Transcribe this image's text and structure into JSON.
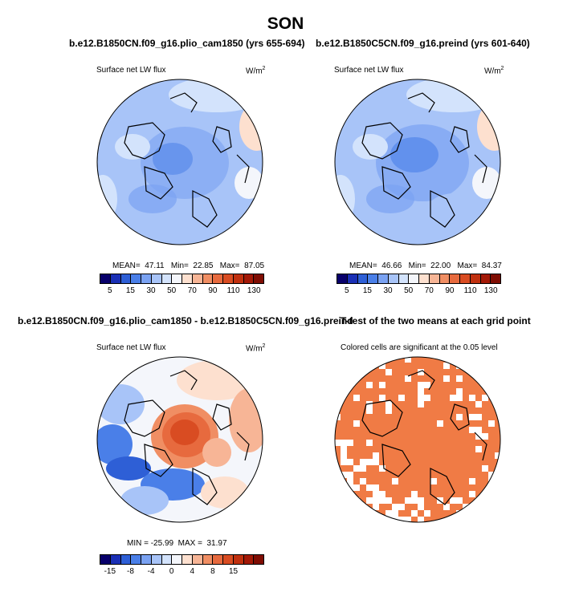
{
  "figure": {
    "title": "SON",
    "panels": [
      {
        "id": "plio",
        "header": "b.e12.B1850CN.f09_g16.plio_cam1850 (yrs 655-694)",
        "field_label": "Surface net LW flux",
        "units_base": "W/m",
        "units_exp": "2",
        "stats_text": "MEAN=  47.11   Min=  22.85   Max=  87.05"
      },
      {
        "id": "preind",
        "header": "b.e12.B1850C5CN.f09_g16.preind (yrs 601-640)",
        "field_label": "Surface net LW flux",
        "units_base": "W/m",
        "units_exp": "2",
        "stats_text": "MEAN=  46.66   Min=  22.00   Max=  84.37"
      },
      {
        "id": "diff",
        "header": "b.e12.B1850CN.f09_g16.plio_cam1850 - b.e12.B1850C5CN.f09_g16.preind",
        "field_label": "Surface net LW flux",
        "units_base": "W/m",
        "units_exp": "2",
        "stats_text": "MIN = -25.99  MAX =  31.97"
      },
      {
        "id": "ttest",
        "header": "T-test of the two means at each grid point",
        "field_label": "Colored cells are significant at the 0.05 level"
      }
    ]
  },
  "chart_data": [
    {
      "type": "heatmap",
      "title": "Surface net LW flux",
      "subtitle": "b.e12.B1850CN.f09_g16.plio_cam1850 (yrs 655-694)",
      "units": "W/m2",
      "projection": "polar stereographic (Arctic)",
      "mean": 47.11,
      "min": 22.85,
      "max": 87.05,
      "colorbar": {
        "levels": [
          5,
          10,
          15,
          20,
          30,
          40,
          50,
          60,
          70,
          80,
          90,
          100,
          110,
          120,
          130
        ],
        "tick_labels": [
          "5",
          "15",
          "30",
          "50",
          "70",
          "90",
          "110",
          "130"
        ],
        "colors": [
          "#08006b",
          "#1a2fb5",
          "#2e5fd6",
          "#4a7fe8",
          "#7aa2f2",
          "#a8c4f8",
          "#d3e3fc",
          "#f4f6fb",
          "#fde0cf",
          "#f7b596",
          "#f08e63",
          "#e76a3e",
          "#d94c22",
          "#c0300f",
          "#a31907",
          "#7f0d03"
        ]
      }
    },
    {
      "type": "heatmap",
      "title": "Surface net LW flux",
      "subtitle": "b.e12.B1850C5CN.f09_g16.preind (yrs 601-640)",
      "units": "W/m2",
      "projection": "polar stereographic (Arctic)",
      "mean": 46.66,
      "min": 22.0,
      "max": 84.37,
      "colorbar": {
        "levels": [
          5,
          10,
          15,
          20,
          30,
          40,
          50,
          60,
          70,
          80,
          90,
          100,
          110,
          120,
          130
        ],
        "tick_labels": [
          "5",
          "15",
          "30",
          "50",
          "70",
          "90",
          "110",
          "130"
        ],
        "colors": [
          "#08006b",
          "#1a2fb5",
          "#2e5fd6",
          "#4a7fe8",
          "#7aa2f2",
          "#a8c4f8",
          "#d3e3fc",
          "#f4f6fb",
          "#fde0cf",
          "#f7b596",
          "#f08e63",
          "#e76a3e",
          "#d94c22",
          "#c0300f",
          "#a31907",
          "#7f0d03"
        ]
      }
    },
    {
      "type": "heatmap",
      "title": "Surface net LW flux",
      "subtitle": "difference plio_cam1850 - preind",
      "units": "W/m2",
      "projection": "polar stereographic (Arctic)",
      "min": -25.99,
      "max": 31.97,
      "colorbar": {
        "levels": [
          -20,
          -15,
          -10,
          -8,
          -6,
          -4,
          -2,
          0,
          2,
          4,
          6,
          8,
          10,
          15,
          20
        ],
        "tick_labels": [
          "-15",
          "-8",
          "-4",
          "0",
          "4",
          "8",
          "15"
        ],
        "colors": [
          "#08006b",
          "#1a2fb5",
          "#2e5fd6",
          "#4a7fe8",
          "#7aa2f2",
          "#a8c4f8",
          "#d3e3fc",
          "#f4f6fb",
          "#fde0cf",
          "#f7b596",
          "#f08e63",
          "#e76a3e",
          "#d94c22",
          "#c0300f",
          "#a31907",
          "#7f0d03"
        ]
      }
    },
    {
      "type": "heatmap",
      "title": "T-test of the two means at each grid point",
      "subtitle": "Colored cells are significant at the 0.05 level",
      "significant_color": "#f07b45",
      "not_significant_color": "#ffffff"
    }
  ]
}
